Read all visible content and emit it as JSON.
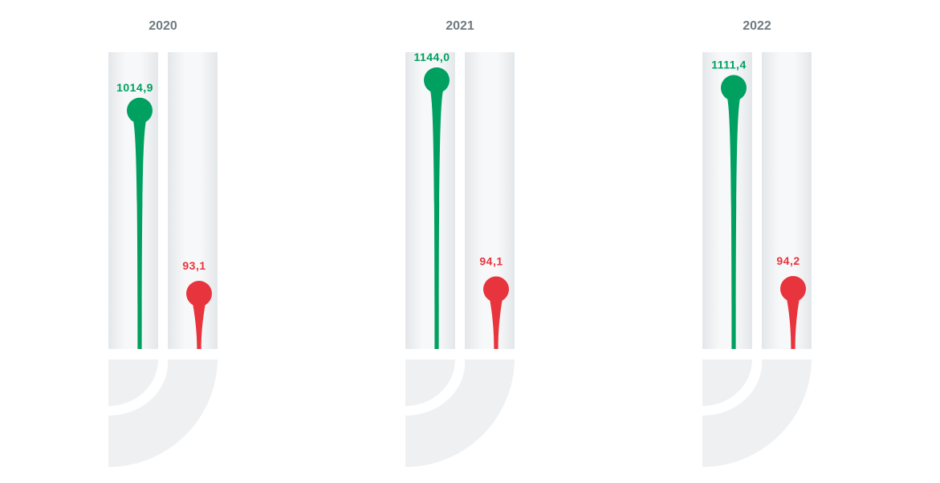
{
  "chart_data": {
    "type": "bar",
    "categories": [
      "2020",
      "2021",
      "2022"
    ],
    "series": [
      {
        "values": [
          1014.9,
          1144.0,
          1111.4
        ],
        "labels": [
          "1014,9",
          "1144,0",
          "1111,4"
        ]
      },
      {
        "values": [
          93.1,
          94.1,
          94.2
        ],
        "labels": [
          "93,1",
          "94,1",
          "94,2"
        ]
      }
    ],
    "colors": {
      "series_1": "#00a060",
      "series_2": "#e8343c",
      "tube": "#eceef0",
      "year_text": "#6f7a80"
    }
  }
}
